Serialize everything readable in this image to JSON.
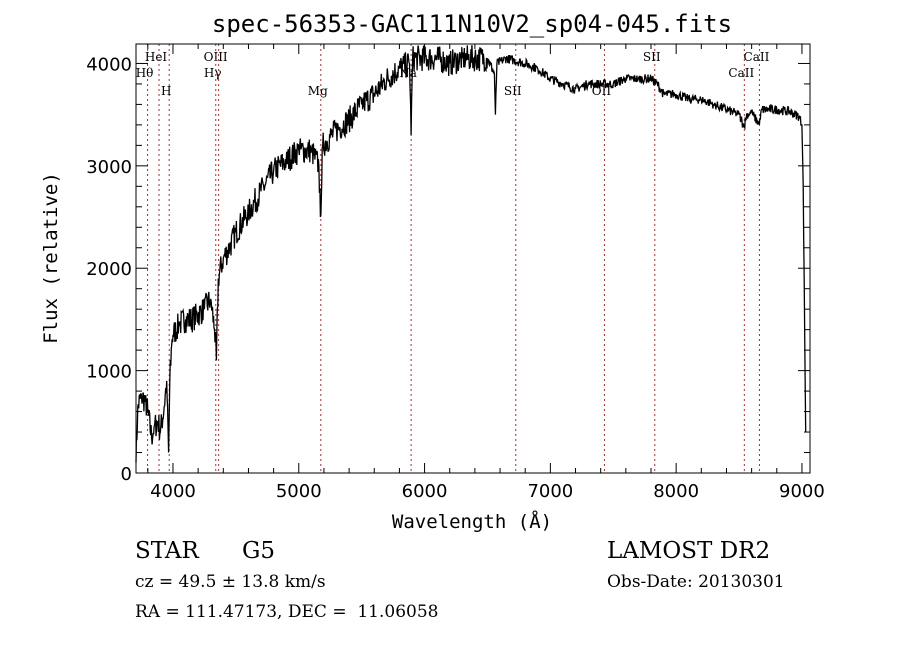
{
  "chart_data": {
    "type": "line",
    "title": "spec-56353-GAC111N10V2_sp04-045.fits",
    "xlabel": "Wavelength (Å)",
    "ylabel": "Flux (relative)",
    "xlim": [
      3706,
      9064
    ],
    "ylim": [
      0,
      4190
    ],
    "xticks": [
      4000,
      5000,
      6000,
      7000,
      8000,
      9000
    ],
    "yticks": [
      0,
      1000,
      2000,
      3000,
      4000
    ],
    "grid": false,
    "series": [
      {
        "name": "spectrum",
        "x": [
          3706,
          3720,
          3750,
          3780,
          3800,
          3830,
          3850,
          3880,
          3900,
          3930,
          3950,
          3965,
          3975,
          3990,
          4000,
          4050,
          4100,
          4150,
          4200,
          4250,
          4300,
          4330,
          4345,
          4360,
          4400,
          4450,
          4500,
          4600,
          4700,
          4800,
          4900,
          5000,
          5100,
          5160,
          5172,
          5190,
          5300,
          5400,
          5500,
          5600,
          5700,
          5800,
          5880,
          5893,
          5905,
          6000,
          6100,
          6200,
          6300,
          6400,
          6500,
          6555,
          6563,
          6575,
          6650,
          6800,
          6900,
          7000,
          7100,
          7200,
          7300,
          7400,
          7500,
          7600,
          7700,
          7800,
          7850,
          7900,
          8000,
          8100,
          8200,
          8300,
          8400,
          8500,
          8542,
          8560,
          8600,
          8662,
          8680,
          8800,
          8900,
          8980,
          9000,
          9010,
          9030
        ],
        "y": [
          100,
          650,
          750,
          700,
          600,
          350,
          450,
          500,
          400,
          650,
          900,
          200,
          900,
          1250,
          1350,
          1450,
          1500,
          1500,
          1550,
          1600,
          1700,
          1400,
          1100,
          1900,
          2100,
          2200,
          2350,
          2550,
          2750,
          2950,
          3050,
          3150,
          3150,
          3000,
          2500,
          3200,
          3350,
          3450,
          3600,
          3700,
          3850,
          3950,
          4000,
          3300,
          4050,
          4050,
          4050,
          4000,
          4050,
          4050,
          4050,
          3900,
          3500,
          4000,
          4050,
          4000,
          3950,
          3850,
          3800,
          3750,
          3800,
          3800,
          3800,
          3850,
          3850,
          3850,
          3800,
          3700,
          3700,
          3650,
          3650,
          3600,
          3550,
          3500,
          3380,
          3500,
          3520,
          3400,
          3550,
          3550,
          3530,
          3480,
          3400,
          2800,
          400
        ]
      }
    ],
    "line_markers": [
      {
        "label": "Hθ",
        "wavelength": 3798,
        "label_row": 2
      },
      {
        "label": "HeI",
        "wavelength": 3889,
        "label_row": 1
      },
      {
        "label": "H",
        "wavelength": 3970,
        "label_row": 3
      },
      {
        "label": "OIII",
        "wavelength": 4363,
        "label_row": 1
      },
      {
        "label": "Hγ",
        "wavelength": 4340,
        "label_row": 2
      },
      {
        "label": "Mg",
        "wavelength": 5175,
        "label_row": 3
      },
      {
        "label": "Na",
        "wavelength": 5893,
        "label_row": 2
      },
      {
        "label": "SII",
        "wavelength": 6725,
        "label_row": 3
      },
      {
        "label": "OII",
        "wavelength": 7430,
        "label_row": 3
      },
      {
        "label": "SII",
        "wavelength": 7830,
        "label_row": 1
      },
      {
        "label": "CaII",
        "wavelength": 8542,
        "label_row": 2
      },
      {
        "label": "CaII",
        "wavelength": 8662,
        "label_row": 1
      }
    ]
  },
  "info": {
    "object_class": "STAR",
    "subclass": "G5",
    "survey": "LAMOST DR2",
    "redshift": "cz = 49.5 ± 13.8 km/s",
    "obs_date": "Obs-Date: 20130301",
    "coords": "RA = 111.47173, DEC =  11.06058"
  }
}
